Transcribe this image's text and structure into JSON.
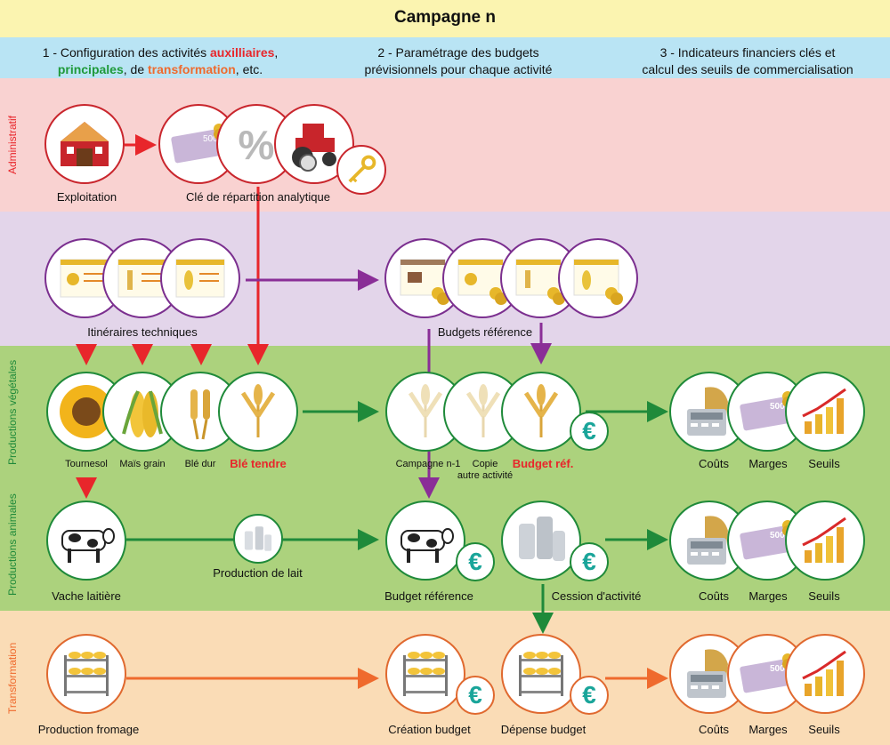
{
  "title": "Campagne n",
  "headers": {
    "step1_prefix": "1 - Configuration des activités ",
    "step1_aux": "auxilliaires",
    "step1_comma": ",",
    "step1_principales": "principales",
    "step1_de": ", de ",
    "step1_transformation": "transformation",
    "step1_end": ", etc.",
    "step2_line1": "2 - Paramétrage des budgets",
    "step2_line2": "prévisionnels pour chaque activité",
    "step3_line1": "3 - Indicateurs financiers clés et",
    "step3_line2": "calcul des seuils de commercialisation"
  },
  "sections": {
    "administratif": "Administratif",
    "productions_vegetales": "Productions végétales",
    "productions_animales": "Productions animales",
    "transformation": "Transformation"
  },
  "colors": {
    "title_band": "#fbf4b0",
    "header_band": "#b9e4f4",
    "admin_band": "#f9d2d1",
    "itineraires_band": "#e3d5ea",
    "vegetales_band": "#acd27d",
    "animales_band": "#acd27d",
    "transformation_band": "#fadcb6",
    "red": "#e8262b",
    "purple": "#8a2e97",
    "green": "#1f8a3a",
    "orange": "#ef6a2d"
  },
  "labels": {
    "exploitation": "Exploitation",
    "cle_repartition": "Clé de répartition analytique",
    "itineraires": "Itinéraires techniques",
    "budgets_reference": "Budgets référence",
    "tournesol": "Tournesol",
    "mais_grain": "Maïs grain",
    "ble_dur": "Blé dur",
    "ble_tendre": "Blé tendre",
    "campagne_n1": "Campagne n-1",
    "copie_line1": "Copie",
    "copie_line2": "autre activité",
    "budget_ref": "Budget réf.",
    "couts": "Coûts",
    "marges": "Marges",
    "seuils": "Seuils",
    "vache_laitiere": "Vache laitière",
    "production_lait": "Production de lait",
    "budget_reference": "Budget référence",
    "cession_activite": "Cession d'activité",
    "production_fromage": "Production fromage",
    "creation_budget": "Création budget",
    "depense_budget": "Dépense budget"
  },
  "icons": {
    "euro_symbol": "€",
    "percent_symbol": "%",
    "five_hundred": "500"
  }
}
